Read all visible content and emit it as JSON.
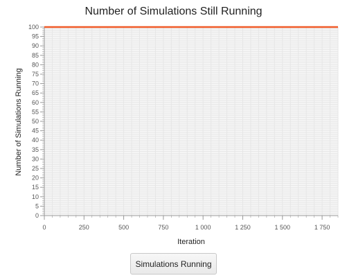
{
  "colors": {
    "series": "#f05a28",
    "grid": "#e6e6e6",
    "axis": "#999999",
    "button_bg": "#eeeeee"
  },
  "button": {
    "label": "Simulations Running"
  },
  "chart_data": {
    "type": "line",
    "title": "Number of Simulations Still Running",
    "xlabel": "Iteration",
    "ylabel": "Number of Simulations Running",
    "xlim": [
      0,
      1850
    ],
    "ylim": [
      0,
      100
    ],
    "x_ticks": [
      0,
      250,
      500,
      750,
      1000,
      1250,
      1500,
      1750
    ],
    "x_tick_labels": [
      "0",
      "250",
      "500",
      "750",
      "1 000",
      "1 250",
      "1 500",
      "1 750"
    ],
    "x_minor_step": 50,
    "y_ticks": [
      0,
      5,
      10,
      15,
      20,
      25,
      30,
      35,
      40,
      45,
      50,
      55,
      60,
      65,
      70,
      75,
      80,
      85,
      90,
      95,
      100
    ],
    "y_minor_step": 1,
    "grid": true,
    "legend": "none",
    "series": [
      {
        "x": [
          0,
          1850
        ],
        "y": [
          100,
          100
        ]
      }
    ]
  }
}
